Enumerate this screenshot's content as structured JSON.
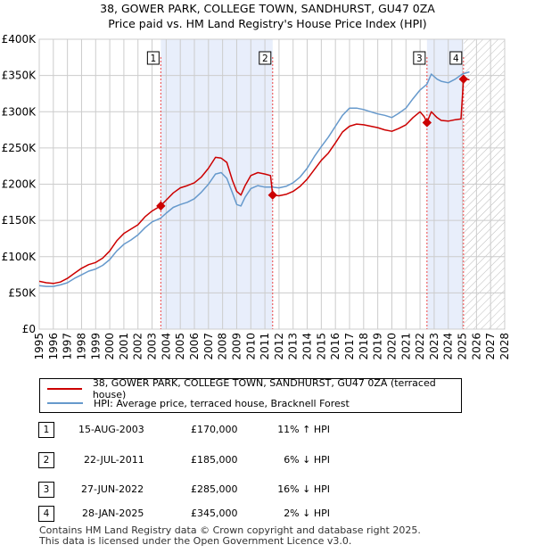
{
  "header": {
    "title_line1": "38, GOWER PARK, COLLEGE TOWN, SANDHURST, GU47 0ZA",
    "title_line2": "Price paid vs. HM Land Registry's House Price Index (HPI)"
  },
  "chart_data": {
    "type": "line",
    "x_range": [
      1995,
      2028
    ],
    "ylim": [
      0,
      400000
    ],
    "y_ticks": [
      {
        "value": 0,
        "label": "£0"
      },
      {
        "value": 50000,
        "label": "£50K"
      },
      {
        "value": 100000,
        "label": "£100K"
      },
      {
        "value": 150000,
        "label": "£150K"
      },
      {
        "value": 200000,
        "label": "£200K"
      },
      {
        "value": 250000,
        "label": "£250K"
      },
      {
        "value": 300000,
        "label": "£300K"
      },
      {
        "value": 350000,
        "label": "£350K"
      },
      {
        "value": 400000,
        "label": "£400K"
      }
    ],
    "x_ticks": [
      "1995",
      "1996",
      "1997",
      "1998",
      "1999",
      "2000",
      "2001",
      "2002",
      "2003",
      "2004",
      "2005",
      "2006",
      "2007",
      "2008",
      "2009",
      "2010",
      "2011",
      "2012",
      "2013",
      "2014",
      "2015",
      "2016",
      "2017",
      "2018",
      "2019",
      "2020",
      "2021",
      "2022",
      "2023",
      "2024",
      "2025",
      "2026",
      "2027",
      "2028"
    ],
    "grid": true,
    "future_hatch_from": 2025.1,
    "series": [
      {
        "name": "38, GOWER PARK, COLLEGE TOWN, SANDHURST, GU47 0ZA (terraced house)",
        "color": "#cc0000",
        "points": [
          [
            1995.0,
            66000
          ],
          [
            1995.5,
            64000
          ],
          [
            1996.0,
            63000
          ],
          [
            1996.5,
            65000
          ],
          [
            1997.0,
            70000
          ],
          [
            1997.5,
            77000
          ],
          [
            1998.0,
            84000
          ],
          [
            1998.5,
            89000
          ],
          [
            1999.0,
            92000
          ],
          [
            1999.5,
            98000
          ],
          [
            2000.0,
            108000
          ],
          [
            2000.5,
            122000
          ],
          [
            2001.0,
            132000
          ],
          [
            2001.5,
            138000
          ],
          [
            2002.0,
            144000
          ],
          [
            2002.5,
            155000
          ],
          [
            2003.0,
            163000
          ],
          [
            2003.6,
            170000
          ],
          [
            2004.0,
            178000
          ],
          [
            2004.5,
            188000
          ],
          [
            2005.0,
            195000
          ],
          [
            2005.5,
            198000
          ],
          [
            2006.0,
            202000
          ],
          [
            2006.5,
            210000
          ],
          [
            2007.0,
            222000
          ],
          [
            2007.5,
            237000
          ],
          [
            2007.9,
            236000
          ],
          [
            2008.3,
            230000
          ],
          [
            2008.7,
            205000
          ],
          [
            2009.0,
            190000
          ],
          [
            2009.3,
            185000
          ],
          [
            2009.6,
            198000
          ],
          [
            2010.0,
            212000
          ],
          [
            2010.5,
            216000
          ],
          [
            2011.0,
            214000
          ],
          [
            2011.4,
            212000
          ],
          [
            2011.55,
            185000
          ],
          [
            2012.0,
            184000
          ],
          [
            2012.5,
            186000
          ],
          [
            2013.0,
            190000
          ],
          [
            2013.5,
            197000
          ],
          [
            2014.0,
            207000
          ],
          [
            2014.5,
            220000
          ],
          [
            2015.0,
            233000
          ],
          [
            2015.5,
            243000
          ],
          [
            2016.0,
            257000
          ],
          [
            2016.5,
            272000
          ],
          [
            2017.0,
            280000
          ],
          [
            2017.5,
            283000
          ],
          [
            2018.0,
            282000
          ],
          [
            2018.5,
            280000
          ],
          [
            2019.0,
            278000
          ],
          [
            2019.5,
            275000
          ],
          [
            2020.0,
            273000
          ],
          [
            2020.5,
            277000
          ],
          [
            2021.0,
            282000
          ],
          [
            2021.5,
            292000
          ],
          [
            2022.0,
            300000
          ],
          [
            2022.3,
            293000
          ],
          [
            2022.49,
            285000
          ],
          [
            2022.8,
            300000
          ],
          [
            2023.2,
            292000
          ],
          [
            2023.5,
            288000
          ],
          [
            2024.0,
            287000
          ],
          [
            2024.5,
            289000
          ],
          [
            2024.9,
            290000
          ],
          [
            2025.08,
            345000
          ],
          [
            2025.3,
            345000
          ],
          [
            2025.5,
            344000
          ]
        ]
      },
      {
        "name": "HPI: Average price, terraced house, Bracknell Forest",
        "color": "#6699cc",
        "points": [
          [
            1995.0,
            60000
          ],
          [
            1995.5,
            59000
          ],
          [
            1996.0,
            59000
          ],
          [
            1996.5,
            61000
          ],
          [
            1997.0,
            64000
          ],
          [
            1997.5,
            70000
          ],
          [
            1998.0,
            75000
          ],
          [
            1998.5,
            80000
          ],
          [
            1999.0,
            83000
          ],
          [
            1999.5,
            88000
          ],
          [
            2000.0,
            96000
          ],
          [
            2000.5,
            108000
          ],
          [
            2001.0,
            117000
          ],
          [
            2001.5,
            123000
          ],
          [
            2002.0,
            130000
          ],
          [
            2002.5,
            140000
          ],
          [
            2003.0,
            148000
          ],
          [
            2003.6,
            153000
          ],
          [
            2004.0,
            160000
          ],
          [
            2004.5,
            168000
          ],
          [
            2005.0,
            172000
          ],
          [
            2005.5,
            175000
          ],
          [
            2006.0,
            180000
          ],
          [
            2006.5,
            189000
          ],
          [
            2007.0,
            200000
          ],
          [
            2007.5,
            214000
          ],
          [
            2007.9,
            216000
          ],
          [
            2008.3,
            208000
          ],
          [
            2008.7,
            188000
          ],
          [
            2009.0,
            172000
          ],
          [
            2009.3,
            170000
          ],
          [
            2009.6,
            182000
          ],
          [
            2010.0,
            194000
          ],
          [
            2010.5,
            198000
          ],
          [
            2011.0,
            196000
          ],
          [
            2011.5,
            196000
          ],
          [
            2012.0,
            195000
          ],
          [
            2012.5,
            197000
          ],
          [
            2013.0,
            202000
          ],
          [
            2013.5,
            210000
          ],
          [
            2014.0,
            222000
          ],
          [
            2014.5,
            238000
          ],
          [
            2015.0,
            252000
          ],
          [
            2015.5,
            265000
          ],
          [
            2016.0,
            280000
          ],
          [
            2016.5,
            295000
          ],
          [
            2017.0,
            305000
          ],
          [
            2017.5,
            305000
          ],
          [
            2018.0,
            303000
          ],
          [
            2018.5,
            300000
          ],
          [
            2019.0,
            297000
          ],
          [
            2019.5,
            295000
          ],
          [
            2020.0,
            292000
          ],
          [
            2020.5,
            298000
          ],
          [
            2021.0,
            305000
          ],
          [
            2021.5,
            318000
          ],
          [
            2022.0,
            330000
          ],
          [
            2022.49,
            338000
          ],
          [
            2022.8,
            352000
          ],
          [
            2023.2,
            345000
          ],
          [
            2023.5,
            342000
          ],
          [
            2024.0,
            340000
          ],
          [
            2024.5,
            345000
          ],
          [
            2025.0,
            352000
          ],
          [
            2025.5,
            355000
          ]
        ]
      }
    ],
    "annotations": [
      {
        "label": "1",
        "x": 2003.62,
        "y": 170000
      },
      {
        "label": "2",
        "x": 2011.55,
        "y": 185000
      },
      {
        "label": "3",
        "x": 2022.49,
        "y": 285000
      },
      {
        "label": "4",
        "x": 2025.08,
        "y": 345000
      }
    ]
  },
  "legend": {
    "items": [
      {
        "label": "38, GOWER PARK, COLLEGE TOWN, SANDHURST, GU47 0ZA (terraced house)",
        "color": "#cc0000"
      },
      {
        "label": "HPI: Average price, terraced house, Bracknell Forest",
        "color": "#6699cc"
      }
    ]
  },
  "transactions": [
    {
      "num": "1",
      "date": "15-AUG-2003",
      "price": "£170,000",
      "hpi": "11% ↑ HPI"
    },
    {
      "num": "2",
      "date": "22-JUL-2011",
      "price": "£185,000",
      "hpi": "6% ↓ HPI"
    },
    {
      "num": "3",
      "date": "27-JUN-2022",
      "price": "£285,000",
      "hpi": "16% ↓ HPI"
    },
    {
      "num": "4",
      "date": "28-JAN-2025",
      "price": "£345,000",
      "hpi": "2% ↓ HPI"
    }
  ],
  "footer": {
    "line1": "Contains HM Land Registry data © Crown copyright and database right 2025.",
    "line2": "This data is licensed under the Open Government Licence v3.0."
  }
}
